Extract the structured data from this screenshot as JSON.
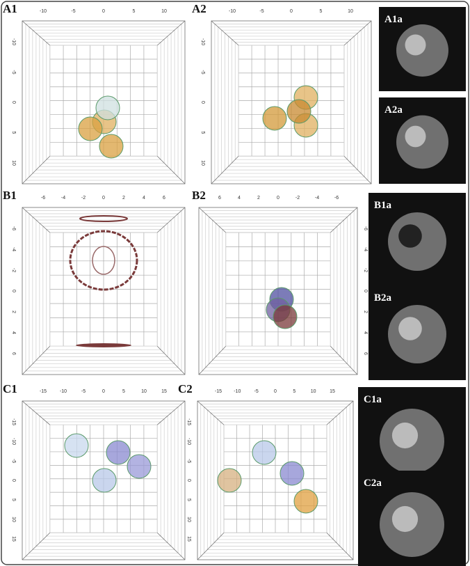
{
  "panels": [
    {
      "label": "A1",
      "top_ticks": [
        -10,
        -5,
        0,
        5,
        10
      ],
      "side_ticks": [
        -10,
        -5,
        0,
        5,
        10
      ]
    },
    {
      "label": "A2",
      "top_ticks": [
        -10,
        -5,
        0,
        5,
        10
      ],
      "side_ticks": [
        -10,
        -5,
        0,
        5,
        10
      ]
    },
    {
      "label": "B1",
      "top_ticks": [
        -6,
        -4,
        -2,
        0,
        2,
        4,
        6
      ],
      "side_ticks": [
        -6,
        -4,
        -2,
        0,
        2,
        4,
        6
      ]
    },
    {
      "label": "B2",
      "top_ticks": [
        6,
        4,
        2,
        0,
        -2,
        -4,
        -6
      ],
      "side_ticks": [
        -6,
        -4,
        -2,
        0,
        2,
        4,
        6
      ]
    },
    {
      "label": "C1",
      "top_ticks": [
        -15,
        -10,
        -5,
        0,
        5,
        10,
        15
      ],
      "side_ticks": [
        -15,
        -10,
        -5,
        0,
        5,
        10,
        15
      ]
    },
    {
      "label": "C2",
      "top_ticks": [
        -15,
        -10,
        -5,
        0,
        5,
        10,
        15
      ],
      "side_ticks": [
        -15,
        -10,
        -5,
        0,
        5,
        10,
        15
      ]
    }
  ],
  "images": [
    {
      "label": "A1a"
    },
    {
      "label": "A2a"
    },
    {
      "label": "B1a"
    },
    {
      "label": "B2a"
    },
    {
      "label": "C1a"
    },
    {
      "label": "C2a"
    }
  ]
}
